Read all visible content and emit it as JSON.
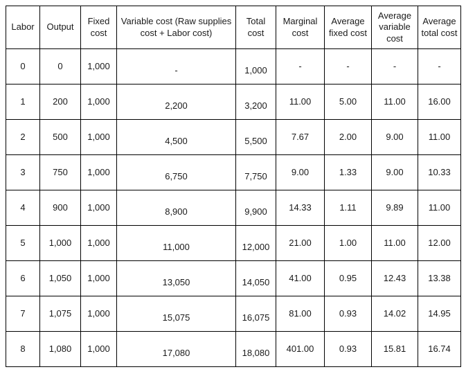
{
  "table": {
    "name": "production-cost-table",
    "columns": [
      {
        "key": "labor",
        "label": "Labor"
      },
      {
        "key": "output",
        "label": "Output"
      },
      {
        "key": "fixed_cost",
        "label": "Fixed cost"
      },
      {
        "key": "variable_cost",
        "label": "Variable cost (Raw supplies cost + Labor cost)"
      },
      {
        "key": "total_cost",
        "label": "Total cost"
      },
      {
        "key": "marginal_cost",
        "label": "Marginal cost"
      },
      {
        "key": "avg_fixed_cost",
        "label": "Average fixed cost"
      },
      {
        "key": "avg_variable_cost",
        "label": "Average variable cost"
      },
      {
        "key": "avg_total_cost",
        "label": "Average total cost"
      }
    ],
    "rows": [
      [
        "0",
        "0",
        "1,000",
        "-",
        "1,000",
        "-",
        "-",
        "-",
        "-"
      ],
      [
        "1",
        "200",
        "1,000",
        "2,200",
        "3,200",
        "11.00",
        "5.00",
        "11.00",
        "16.00"
      ],
      [
        "2",
        "500",
        "1,000",
        "4,500",
        "5,500",
        "7.67",
        "2.00",
        "9.00",
        "11.00"
      ],
      [
        "3",
        "750",
        "1,000",
        "6,750",
        "7,750",
        "9.00",
        "1.33",
        "9.00",
        "10.33"
      ],
      [
        "4",
        "900",
        "1,000",
        "8,900",
        "9,900",
        "14.33",
        "1.11",
        "9.89",
        "11.00"
      ],
      [
        "5",
        "1,000",
        "1,000",
        "11,000",
        "12,000",
        "21.00",
        "1.00",
        "11.00",
        "12.00"
      ],
      [
        "6",
        "1,050",
        "1,000",
        "13,050",
        "14,050",
        "41.00",
        "0.95",
        "12.43",
        "13.38"
      ],
      [
        "7",
        "1,075",
        "1,000",
        "15,075",
        "16,075",
        "81.00",
        "0.93",
        "14.02",
        "14.95"
      ],
      [
        "8",
        "1,080",
        "1,000",
        "17,080",
        "18,080",
        "401.00",
        "0.93",
        "15.81",
        "16.74"
      ]
    ],
    "colors": {
      "border": "#000000",
      "text": "#1a1a1a",
      "background": "#ffffff"
    }
  }
}
